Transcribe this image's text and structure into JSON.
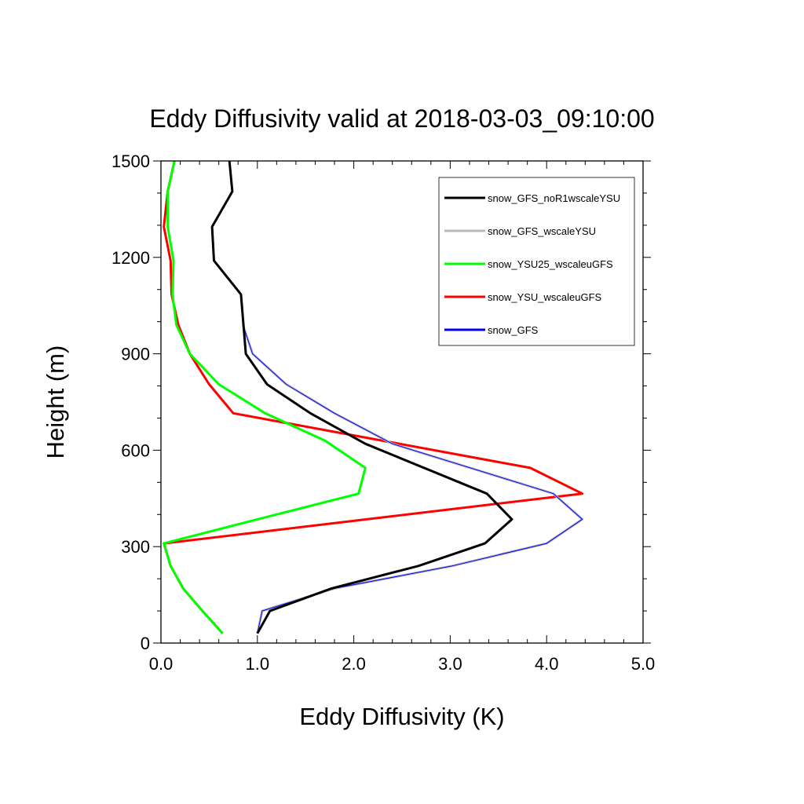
{
  "chart_data": {
    "type": "line",
    "title": "Eddy Diffusivity valid at 2018-03-03_09:10:00",
    "xlabel": "Eddy Diffusivity (K)",
    "ylabel": "Height (m)",
    "xlim": [
      0,
      5
    ],
    "ylim": [
      0,
      1500
    ],
    "xticks": [
      "0.0",
      "1.0",
      "2.0",
      "3.0",
      "4.0",
      "5.0"
    ],
    "yticks": [
      "0",
      "300",
      "600",
      "900",
      "1200",
      "1500"
    ],
    "legend_position": "top-right",
    "grid": false,
    "series": [
      {
        "name": "snow_GFS_noR1wscaleYSU",
        "color": "#000000",
        "points": [
          [
            1.0,
            30
          ],
          [
            1.13,
            100
          ],
          [
            1.77,
            170
          ],
          [
            2.67,
            240
          ],
          [
            3.36,
            310
          ],
          [
            3.64,
            385
          ],
          [
            3.38,
            465
          ],
          [
            2.12,
            620
          ],
          [
            1.55,
            715
          ],
          [
            1.1,
            805
          ],
          [
            0.88,
            900
          ],
          [
            0.83,
            1085
          ],
          [
            0.55,
            1190
          ],
          [
            0.53,
            1295
          ],
          [
            0.74,
            1405
          ],
          [
            0.71,
            1500
          ]
        ]
      },
      {
        "name": "snow_GFS_wscaleYSU",
        "color": "#b8b8b8",
        "points": [
          [
            1.0,
            30
          ],
          [
            1.05,
            100
          ],
          [
            1.8,
            170
          ],
          [
            3.02,
            240
          ],
          [
            4.0,
            310
          ],
          [
            4.37,
            385
          ],
          [
            4.07,
            465
          ],
          [
            2.4,
            620
          ],
          [
            1.8,
            715
          ],
          [
            1.3,
            805
          ],
          [
            0.95,
            900
          ],
          [
            0.85,
            990
          ]
        ]
      },
      {
        "name": "snow_YSU25_wscaleuGFS",
        "color": "#00ff00",
        "points": [
          [
            0.64,
            30
          ],
          [
            0.43,
            100
          ],
          [
            0.23,
            170
          ],
          [
            0.1,
            240
          ],
          [
            0.03,
            310
          ],
          [
            1.0,
            385
          ],
          [
            2.05,
            465
          ],
          [
            2.12,
            545
          ],
          [
            1.7,
            630
          ],
          [
            1.08,
            715
          ],
          [
            0.6,
            805
          ],
          [
            0.3,
            900
          ],
          [
            0.16,
            990
          ],
          [
            0.12,
            1085
          ],
          [
            0.13,
            1190
          ],
          [
            0.07,
            1295
          ],
          [
            0.07,
            1405
          ],
          [
            0.14,
            1500
          ]
        ]
      },
      {
        "name": "snow_YSU_wscaleuGFS",
        "color": "#ff0000",
        "points": [
          [
            0.64,
            30
          ],
          [
            0.43,
            100
          ],
          [
            0.23,
            170
          ],
          [
            0.1,
            240
          ],
          [
            0.03,
            310
          ],
          [
            4.37,
            465
          ],
          [
            3.83,
            545
          ],
          [
            0.75,
            715
          ],
          [
            0.5,
            805
          ],
          [
            0.3,
            900
          ],
          [
            0.18,
            990
          ],
          [
            0.11,
            1085
          ],
          [
            0.1,
            1190
          ],
          [
            0.03,
            1295
          ],
          [
            0.07,
            1405
          ],
          [
            0.14,
            1500
          ]
        ]
      },
      {
        "name": "snow_GFS",
        "color": "#0000ff",
        "points": [
          [
            1.0,
            30
          ],
          [
            1.05,
            100
          ],
          [
            1.8,
            170
          ],
          [
            3.02,
            240
          ],
          [
            4.0,
            310
          ],
          [
            4.37,
            385
          ],
          [
            4.07,
            465
          ],
          [
            2.4,
            620
          ],
          [
            1.8,
            715
          ],
          [
            1.3,
            805
          ],
          [
            0.95,
            900
          ],
          [
            0.85,
            990
          ]
        ]
      }
    ]
  }
}
